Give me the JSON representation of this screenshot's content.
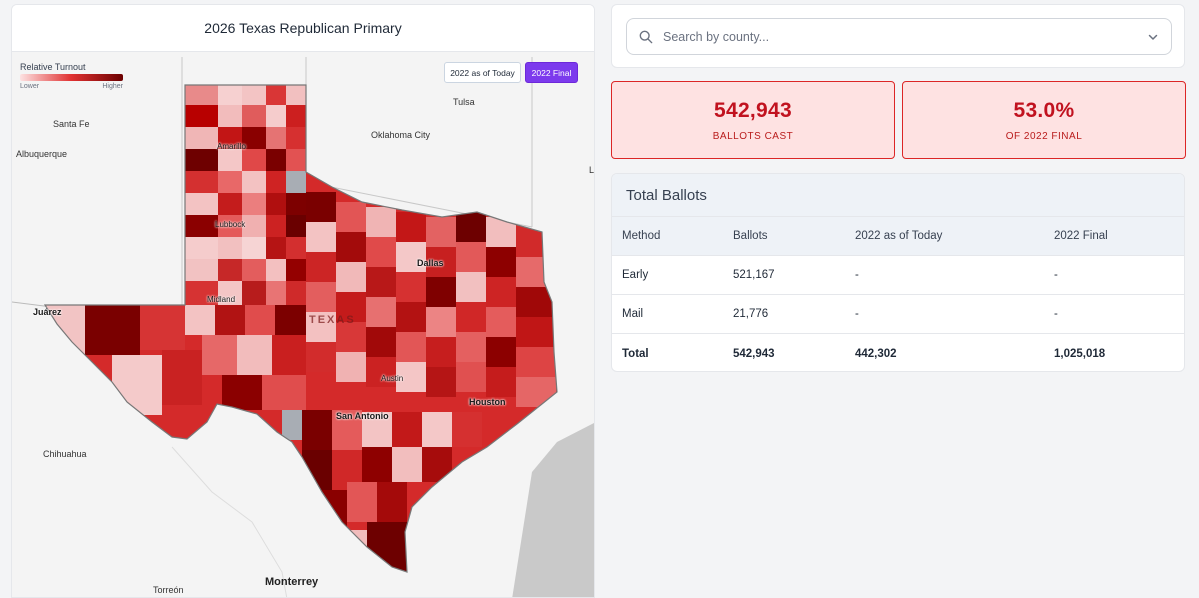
{
  "map": {
    "title": "2026 Texas Republican Primary",
    "legend": {
      "title": "Relative Turnout",
      "low": "Lower",
      "high": "Higher"
    },
    "toggles": {
      "today": "2022 as of Today",
      "final": "2022 Final"
    },
    "state_label": "TEXAS",
    "cities": {
      "santa_fe": "Santa Fe",
      "albuquerque": "Albuquerque",
      "tulsa": "Tulsa",
      "oklahoma_city": "Oklahoma City",
      "amarillo": "Amarillo",
      "lubbock": "Lubbock",
      "dallas": "Dallas",
      "midland": "Midland",
      "juarez": "Juárez",
      "austin": "Austin",
      "san_antonio": "San Antonio",
      "houston": "Houston",
      "chihuahua": "Chihuahua",
      "torreon": "Torreón",
      "monterrey": "Monterrey",
      "edge_l": "L"
    },
    "colors": {
      "light": "#f4c7c7",
      "mid": "#e03131",
      "dark": "#7a0000",
      "gray": "#a8adb4",
      "water": "#c9c9c9"
    }
  },
  "search": {
    "placeholder": "Search by county..."
  },
  "stats": [
    {
      "value": "542,943",
      "label": "BALLOTS CAST"
    },
    {
      "value": "53.0%",
      "label": "OF 2022 FINAL"
    }
  ],
  "table": {
    "title": "Total Ballots",
    "headers": [
      "Method",
      "Ballots",
      "2022 as of Today",
      "2022 Final"
    ],
    "rows": [
      [
        "Early",
        "521,167",
        "-",
        "-"
      ],
      [
        "Mail",
        "21,776",
        "-",
        "-"
      ]
    ],
    "total": [
      "Total",
      "542,943",
      "442,302",
      "1,025,018"
    ]
  }
}
